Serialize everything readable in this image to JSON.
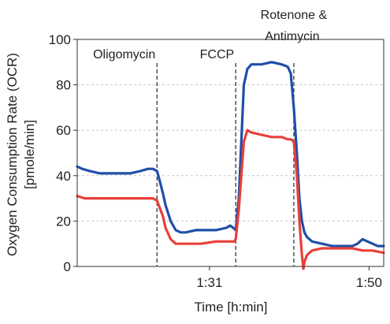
{
  "chart_data": {
    "type": "line",
    "xlabel": "Time [h:min]",
    "ylabel_line1": "Oxygen Consumption Rate (OCR)",
    "ylabel_line2": "[pmole/min]",
    "x_unit": "minutes",
    "xlim": [
      1.255,
      1.862
    ],
    "ylim": [
      0,
      100
    ],
    "x_ticks": [
      {
        "value": 1.517,
        "label": "1:31"
      },
      {
        "value": 1.833,
        "label": "1:50"
      }
    ],
    "y_ticks": [
      0,
      20,
      40,
      60,
      80,
      100
    ],
    "grid": "horizontal-dashed",
    "injections": [
      {
        "name": "Oligomycin",
        "x": 1.413
      },
      {
        "name": "FCCP",
        "x": 1.569
      },
      {
        "name": "Rotenone & Antimycin",
        "name_line1": "Rotenone &",
        "name_line2": "Antimycin",
        "x": 1.684
      }
    ],
    "series": [
      {
        "color": "#1f4fa8",
        "x": [
          1.255,
          1.265,
          1.28,
          1.3,
          1.32,
          1.34,
          1.36,
          1.38,
          1.395,
          1.405,
          1.413,
          1.418,
          1.425,
          1.43,
          1.44,
          1.45,
          1.46,
          1.47,
          1.49,
          1.51,
          1.53,
          1.55,
          1.558,
          1.564,
          1.569,
          1.575,
          1.58,
          1.585,
          1.592,
          1.6,
          1.62,
          1.64,
          1.66,
          1.672,
          1.678,
          1.684,
          1.69,
          1.695,
          1.7,
          1.705,
          1.71,
          1.72,
          1.74,
          1.76,
          1.78,
          1.8,
          1.81,
          1.82,
          1.83,
          1.84,
          1.85,
          1.862
        ],
        "y": [
          44,
          43,
          42,
          41,
          41,
          41,
          41,
          42,
          43,
          43,
          42,
          38,
          32,
          27,
          20,
          16,
          15,
          15,
          16,
          16,
          16,
          17,
          18,
          17,
          16,
          30,
          55,
          80,
          87,
          89,
          89,
          90,
          89,
          88,
          85,
          70,
          50,
          30,
          20,
          15,
          13,
          11,
          10,
          9,
          9,
          9,
          10,
          12,
          11,
          10,
          9,
          9
        ]
      },
      {
        "color": "#e8403a",
        "x": [
          1.255,
          1.27,
          1.3,
          1.34,
          1.38,
          1.395,
          1.405,
          1.413,
          1.418,
          1.425,
          1.43,
          1.44,
          1.45,
          1.47,
          1.5,
          1.53,
          1.55,
          1.56,
          1.566,
          1.569,
          1.575,
          1.58,
          1.585,
          1.592,
          1.6,
          1.62,
          1.64,
          1.66,
          1.672,
          1.678,
          1.684,
          1.69,
          1.695,
          1.7,
          1.703,
          1.705,
          1.71,
          1.72,
          1.74,
          1.76,
          1.78,
          1.8,
          1.82,
          1.84,
          1.862
        ],
        "y": [
          31,
          30,
          30,
          30,
          30,
          30,
          30,
          29,
          26,
          22,
          17,
          12,
          10,
          10,
          10,
          11,
          11,
          11,
          11,
          12,
          25,
          40,
          55,
          60,
          59,
          58,
          57,
          57,
          56,
          56,
          55,
          40,
          20,
          5,
          -1,
          2,
          5,
          7,
          8,
          8,
          8,
          8,
          7,
          7,
          6
        ]
      }
    ]
  }
}
